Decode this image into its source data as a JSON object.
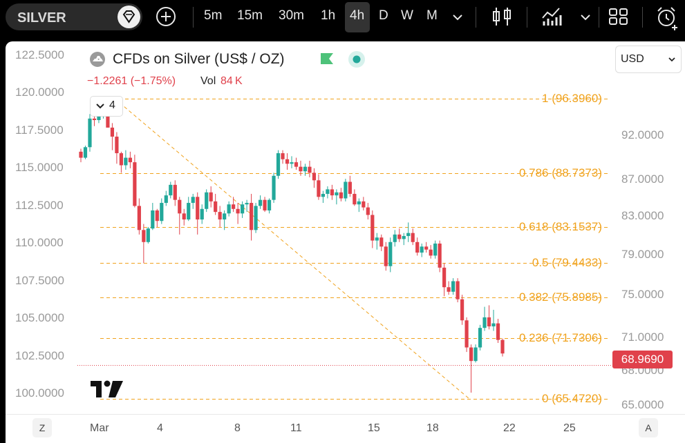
{
  "toolbar": {
    "symbol": "SILVER",
    "timeframes": [
      "5m",
      "15m",
      "30m",
      "1h",
      "4h",
      "D",
      "W",
      "M"
    ],
    "active_timeframe": "4h"
  },
  "legend": {
    "title": "CFDs on Silver (US$ / OZ)",
    "change": "−1.2261 (−1.75%)",
    "vol_label": "Vol",
    "vol_value": "84 K",
    "collapse_count": "4"
  },
  "currency": "USD",
  "last_price_tag": "68.9690",
  "colors": {
    "up": "#22a89a",
    "down": "#e0414b",
    "fib": "#f0a21c"
  },
  "chart_data": {
    "type": "candlestick",
    "left_axis": [
      "122.5000",
      "120.0000",
      "117.5000",
      "115.0000",
      "112.5000",
      "110.0000",
      "107.5000",
      "105.0000",
      "102.5000",
      "100.0000"
    ],
    "right_axis": [
      "92.0000",
      "87.0000",
      "83.0000",
      "79.0000",
      "75.0000",
      "71.0000",
      "68.0000",
      "65.0000"
    ],
    "x_labels": [
      "Mar",
      "4",
      "8",
      "11",
      "15",
      "18",
      "22",
      "25"
    ],
    "last_price": 68.969,
    "fib_levels": [
      {
        "level": "1",
        "value": "96.3960"
      },
      {
        "level": "0.786",
        "value": "88.7373"
      },
      {
        "level": "0.618",
        "value": "83.1537"
      },
      {
        "level": "0.5",
        "value": "79.4433"
      },
      {
        "level": "0.382",
        "value": "75.8985"
      },
      {
        "level": "0.236",
        "value": "71.7306"
      },
      {
        "level": "0",
        "value": "65.4720"
      }
    ],
    "candles": [
      [
        116.0,
        116.2,
        115.3,
        115.6
      ],
      [
        115.6,
        116.4,
        115.5,
        116.3
      ],
      [
        116.3,
        118.5,
        116.0,
        118.2
      ],
      [
        118.2,
        118.6,
        117.7,
        118.1
      ],
      [
        118.1,
        118.9,
        117.9,
        118.6
      ],
      [
        118.6,
        118.8,
        118.2,
        118.7
      ],
      [
        118.7,
        119.6,
        117.6,
        117.6
      ],
      [
        117.6,
        117.9,
        116.1,
        117.0
      ],
      [
        117.0,
        117.3,
        115.2,
        115.9
      ],
      [
        115.9,
        116.0,
        114.6,
        115.1
      ],
      [
        115.1,
        116.1,
        114.8,
        115.6
      ],
      [
        115.6,
        116.0,
        114.9,
        115.3
      ],
      [
        115.3,
        115.8,
        112.3,
        112.4
      ],
      [
        112.4,
        112.9,
        110.5,
        110.8
      ],
      [
        110.8,
        111.2,
        108.6,
        110.0
      ],
      [
        110.0,
        111.0,
        109.9,
        110.9
      ],
      [
        110.9,
        112.6,
        110.8,
        112.1
      ],
      [
        112.1,
        112.2,
        111.0,
        111.4
      ],
      [
        111.4,
        112.9,
        111.2,
        112.6
      ],
      [
        112.6,
        113.4,
        112.4,
        113.1
      ],
      [
        113.1,
        114.0,
        112.9,
        113.8
      ],
      [
        113.8,
        114.1,
        112.4,
        112.8
      ],
      [
        112.8,
        113.0,
        110.5,
        111.9
      ],
      [
        111.9,
        112.2,
        111.1,
        111.5
      ],
      [
        111.5,
        113.0,
        111.4,
        112.6
      ],
      [
        112.6,
        113.2,
        112.2,
        113.0
      ],
      [
        113.0,
        113.3,
        110.5,
        111.5
      ],
      [
        111.5,
        112.5,
        111.2,
        112.2
      ],
      [
        112.2,
        113.5,
        112.0,
        113.3
      ],
      [
        113.3,
        113.7,
        112.3,
        112.7
      ],
      [
        112.7,
        113.2,
        111.8,
        112.0
      ],
      [
        112.0,
        112.4,
        111.0,
        111.5
      ],
      [
        111.5,
        112.1,
        110.8,
        111.9
      ],
      [
        111.9,
        112.7,
        111.7,
        112.5
      ],
      [
        112.5,
        113.0,
        112.0,
        112.2
      ],
      [
        112.2,
        112.6,
        111.2,
        111.9
      ],
      [
        111.9,
        112.7,
        111.6,
        112.5
      ],
      [
        112.5,
        112.8,
        112.0,
        112.6
      ],
      [
        112.6,
        113.2,
        110.1,
        110.8
      ],
      [
        110.8,
        112.6,
        110.6,
        112.4
      ],
      [
        112.4,
        113.1,
        112.2,
        112.8
      ],
      [
        112.8,
        113.0,
        112.0,
        112.1
      ],
      [
        112.1,
        112.9,
        111.9,
        112.8
      ],
      [
        112.8,
        114.6,
        112.6,
        114.4
      ],
      [
        114.4,
        116.1,
        114.2,
        115.9
      ],
      [
        115.9,
        116.1,
        115.2,
        115.5
      ],
      [
        115.5,
        115.9,
        114.8,
        115.2
      ],
      [
        115.2,
        115.7,
        114.9,
        115.3
      ],
      [
        115.3,
        115.6,
        114.8,
        115.0
      ],
      [
        115.0,
        115.4,
        114.4,
        114.7
      ],
      [
        114.7,
        115.2,
        114.4,
        115.0
      ],
      [
        115.0,
        115.4,
        114.3,
        114.6
      ],
      [
        114.6,
        114.9,
        113.6,
        114.1
      ],
      [
        114.1,
        114.5,
        112.8,
        113.0
      ],
      [
        113.0,
        113.4,
        112.6,
        113.2
      ],
      [
        113.2,
        113.7,
        112.9,
        113.5
      ],
      [
        113.5,
        113.8,
        112.8,
        113.1
      ],
      [
        113.1,
        113.5,
        112.5,
        113.3
      ],
      [
        113.3,
        113.6,
        112.7,
        112.9
      ],
      [
        112.9,
        114.2,
        112.7,
        114.0
      ],
      [
        114.0,
        114.4,
        113.0,
        113.2
      ],
      [
        113.2,
        113.5,
        112.4,
        112.5
      ],
      [
        112.5,
        112.9,
        112.0,
        112.7
      ],
      [
        112.7,
        113.0,
        112.1,
        112.3
      ],
      [
        112.3,
        112.6,
        111.5,
        111.8
      ],
      [
        111.8,
        112.1,
        109.6,
        110.1
      ],
      [
        110.1,
        110.6,
        109.5,
        110.3
      ],
      [
        110.3,
        110.5,
        109.4,
        109.7
      ],
      [
        109.7,
        110.0,
        108.1,
        108.4
      ],
      [
        108.4,
        110.3,
        108.0,
        110.0
      ],
      [
        110.0,
        110.8,
        109.7,
        110.5
      ],
      [
        110.5,
        110.9,
        110.0,
        110.2
      ],
      [
        110.2,
        110.6,
        109.8,
        110.4
      ],
      [
        110.4,
        111.3,
        110.0,
        110.6
      ],
      [
        110.6,
        110.9,
        109.8,
        110.0
      ],
      [
        110.0,
        110.3,
        109.1,
        109.3
      ],
      [
        109.3,
        109.9,
        109.0,
        109.7
      ],
      [
        109.7,
        110.0,
        109.3,
        109.5
      ],
      [
        109.5,
        109.8,
        108.9,
        109.1
      ],
      [
        109.1,
        110.1,
        108.9,
        109.9
      ],
      [
        109.9,
        110.1,
        108.0,
        108.3
      ],
      [
        108.3,
        108.6,
        106.4,
        107.0
      ],
      [
        107.0,
        107.4,
        106.5,
        106.7
      ],
      [
        106.7,
        107.6,
        106.5,
        107.4
      ],
      [
        107.4,
        107.6,
        106.0,
        106.2
      ],
      [
        106.2,
        106.5,
        104.5,
        104.8
      ],
      [
        104.8,
        105.0,
        102.7,
        103.0
      ],
      [
        103.0,
        103.2,
        100.0,
        102.1
      ],
      [
        102.1,
        103.2,
        102.0,
        103.0
      ],
      [
        103.0,
        104.5,
        102.8,
        104.3
      ],
      [
        104.3,
        105.7,
        104.1,
        105.0
      ],
      [
        105.0,
        105.8,
        104.2,
        104.4
      ],
      [
        104.4,
        105.5,
        104.1,
        104.6
      ],
      [
        104.6,
        104.9,
        103.3,
        103.5
      ],
      [
        103.5,
        103.6,
        102.4,
        102.6
      ]
    ]
  }
}
